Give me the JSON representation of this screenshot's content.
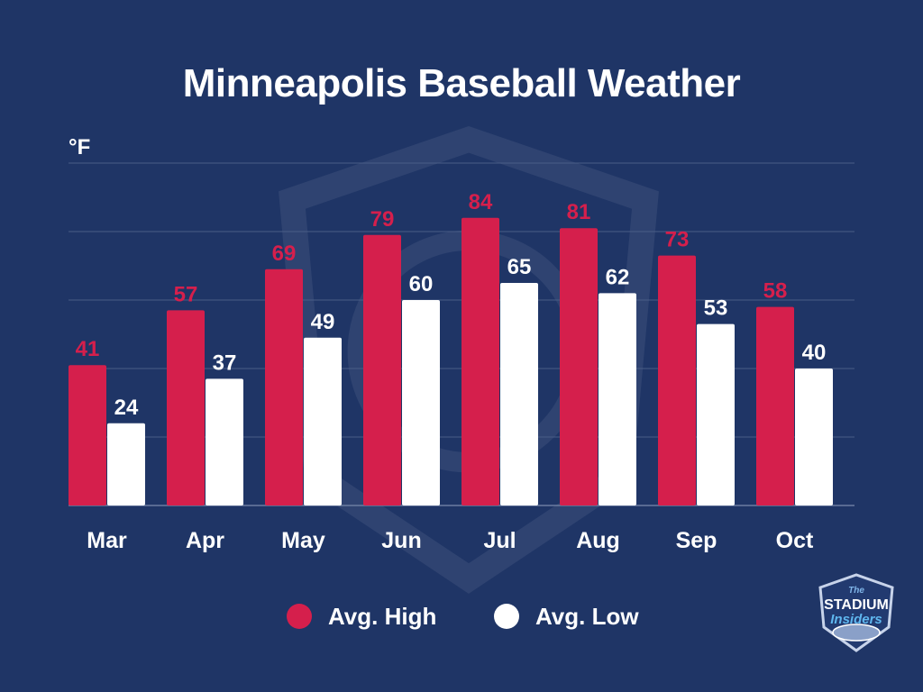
{
  "title": "Minneapolis Baseball Weather",
  "unit_label": "°F",
  "legend": [
    {
      "label": "Avg. High",
      "color": "#d51f4c"
    },
    {
      "label": "Avg. Low",
      "color": "#ffffff"
    }
  ],
  "logo": {
    "text_top": "The",
    "text_main": "STADIUM",
    "text_script": "Insiders"
  },
  "colors": {
    "background": "#1f3566",
    "high": "#d51f4c",
    "low": "#ffffff",
    "high_label": "#d51f4c",
    "low_label": "#ffffff",
    "grid": "#4a5d87"
  },
  "chart_data": {
    "type": "bar",
    "title": "Minneapolis Baseball Weather",
    "ylabel": "°F",
    "xlabel": "",
    "categories": [
      "Mar",
      "Apr",
      "May",
      "Jun",
      "Jul",
      "Aug",
      "Sep",
      "Oct"
    ],
    "series": [
      {
        "name": "Avg. High",
        "values": [
          41,
          57,
          69,
          79,
          84,
          81,
          73,
          58
        ]
      },
      {
        "name": "Avg. Low",
        "values": [
          24,
          37,
          49,
          60,
          65,
          62,
          53,
          40
        ]
      }
    ],
    "ylim": [
      0,
      100
    ],
    "grid": true,
    "legend_position": "bottom"
  }
}
